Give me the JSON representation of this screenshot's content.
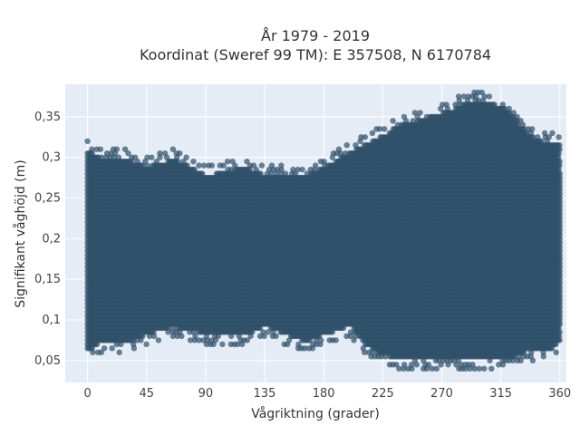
{
  "chart_data": {
    "type": "scatter",
    "title_line1": "År 1979 - 2019",
    "title_line2": "Koordinat (Sweref 99 TM): E 357508, N 6170784",
    "xlabel": "Vågriktning (grader)",
    "ylabel": "Signifikant våghöjd (m)",
    "xlim": [
      -17,
      365
    ],
    "ylim": [
      0.023,
      0.39
    ],
    "grid": true,
    "xticks": [
      0,
      45,
      90,
      135,
      180,
      225,
      270,
      315,
      360
    ],
    "xtick_labels": [
      "0",
      "45",
      "90",
      "135",
      "180",
      "225",
      "270",
      "315",
      "360"
    ],
    "yticks": [
      0.05,
      0.1,
      0.15,
      0.2,
      0.25,
      0.3,
      0.35
    ],
    "ytick_labels": [
      "0,05",
      "0,1",
      "0,15",
      "0,2",
      "0,25",
      "0,3",
      "0,35"
    ],
    "marker_color": "#2f5069",
    "marker_opacity": 0.7,
    "plot_background": "#e5ecf6",
    "y_resolution": 0.005,
    "x_range": [
      0,
      360
    ],
    "envelope": [
      {
        "x": 0,
        "ymin": 0.05,
        "ymax": 0.32
      },
      {
        "x": 10,
        "ymin": 0.06,
        "ymax": 0.31
      },
      {
        "x": 30,
        "ymin": 0.06,
        "ymax": 0.31
      },
      {
        "x": 45,
        "ymin": 0.07,
        "ymax": 0.3
      },
      {
        "x": 65,
        "ymin": 0.08,
        "ymax": 0.31
      },
      {
        "x": 90,
        "ymin": 0.07,
        "ymax": 0.29
      },
      {
        "x": 120,
        "ymin": 0.07,
        "ymax": 0.3
      },
      {
        "x": 135,
        "ymin": 0.08,
        "ymax": 0.29
      },
      {
        "x": 150,
        "ymin": 0.07,
        "ymax": 0.29
      },
      {
        "x": 165,
        "ymin": 0.06,
        "ymax": 0.29
      },
      {
        "x": 180,
        "ymin": 0.07,
        "ymax": 0.3
      },
      {
        "x": 200,
        "ymin": 0.08,
        "ymax": 0.32
      },
      {
        "x": 215,
        "ymin": 0.05,
        "ymax": 0.33
      },
      {
        "x": 235,
        "ymin": 0.04,
        "ymax": 0.35
      },
      {
        "x": 255,
        "ymin": 0.04,
        "ymax": 0.36
      },
      {
        "x": 275,
        "ymin": 0.04,
        "ymax": 0.37
      },
      {
        "x": 290,
        "ymin": 0.04,
        "ymax": 0.38
      },
      {
        "x": 305,
        "ymin": 0.04,
        "ymax": 0.38
      },
      {
        "x": 320,
        "ymin": 0.04,
        "ymax": 0.37
      },
      {
        "x": 335,
        "ymin": 0.05,
        "ymax": 0.34
      },
      {
        "x": 350,
        "ymin": 0.05,
        "ymax": 0.33
      },
      {
        "x": 360,
        "ymin": 0.06,
        "ymax": 0.33
      }
    ]
  }
}
